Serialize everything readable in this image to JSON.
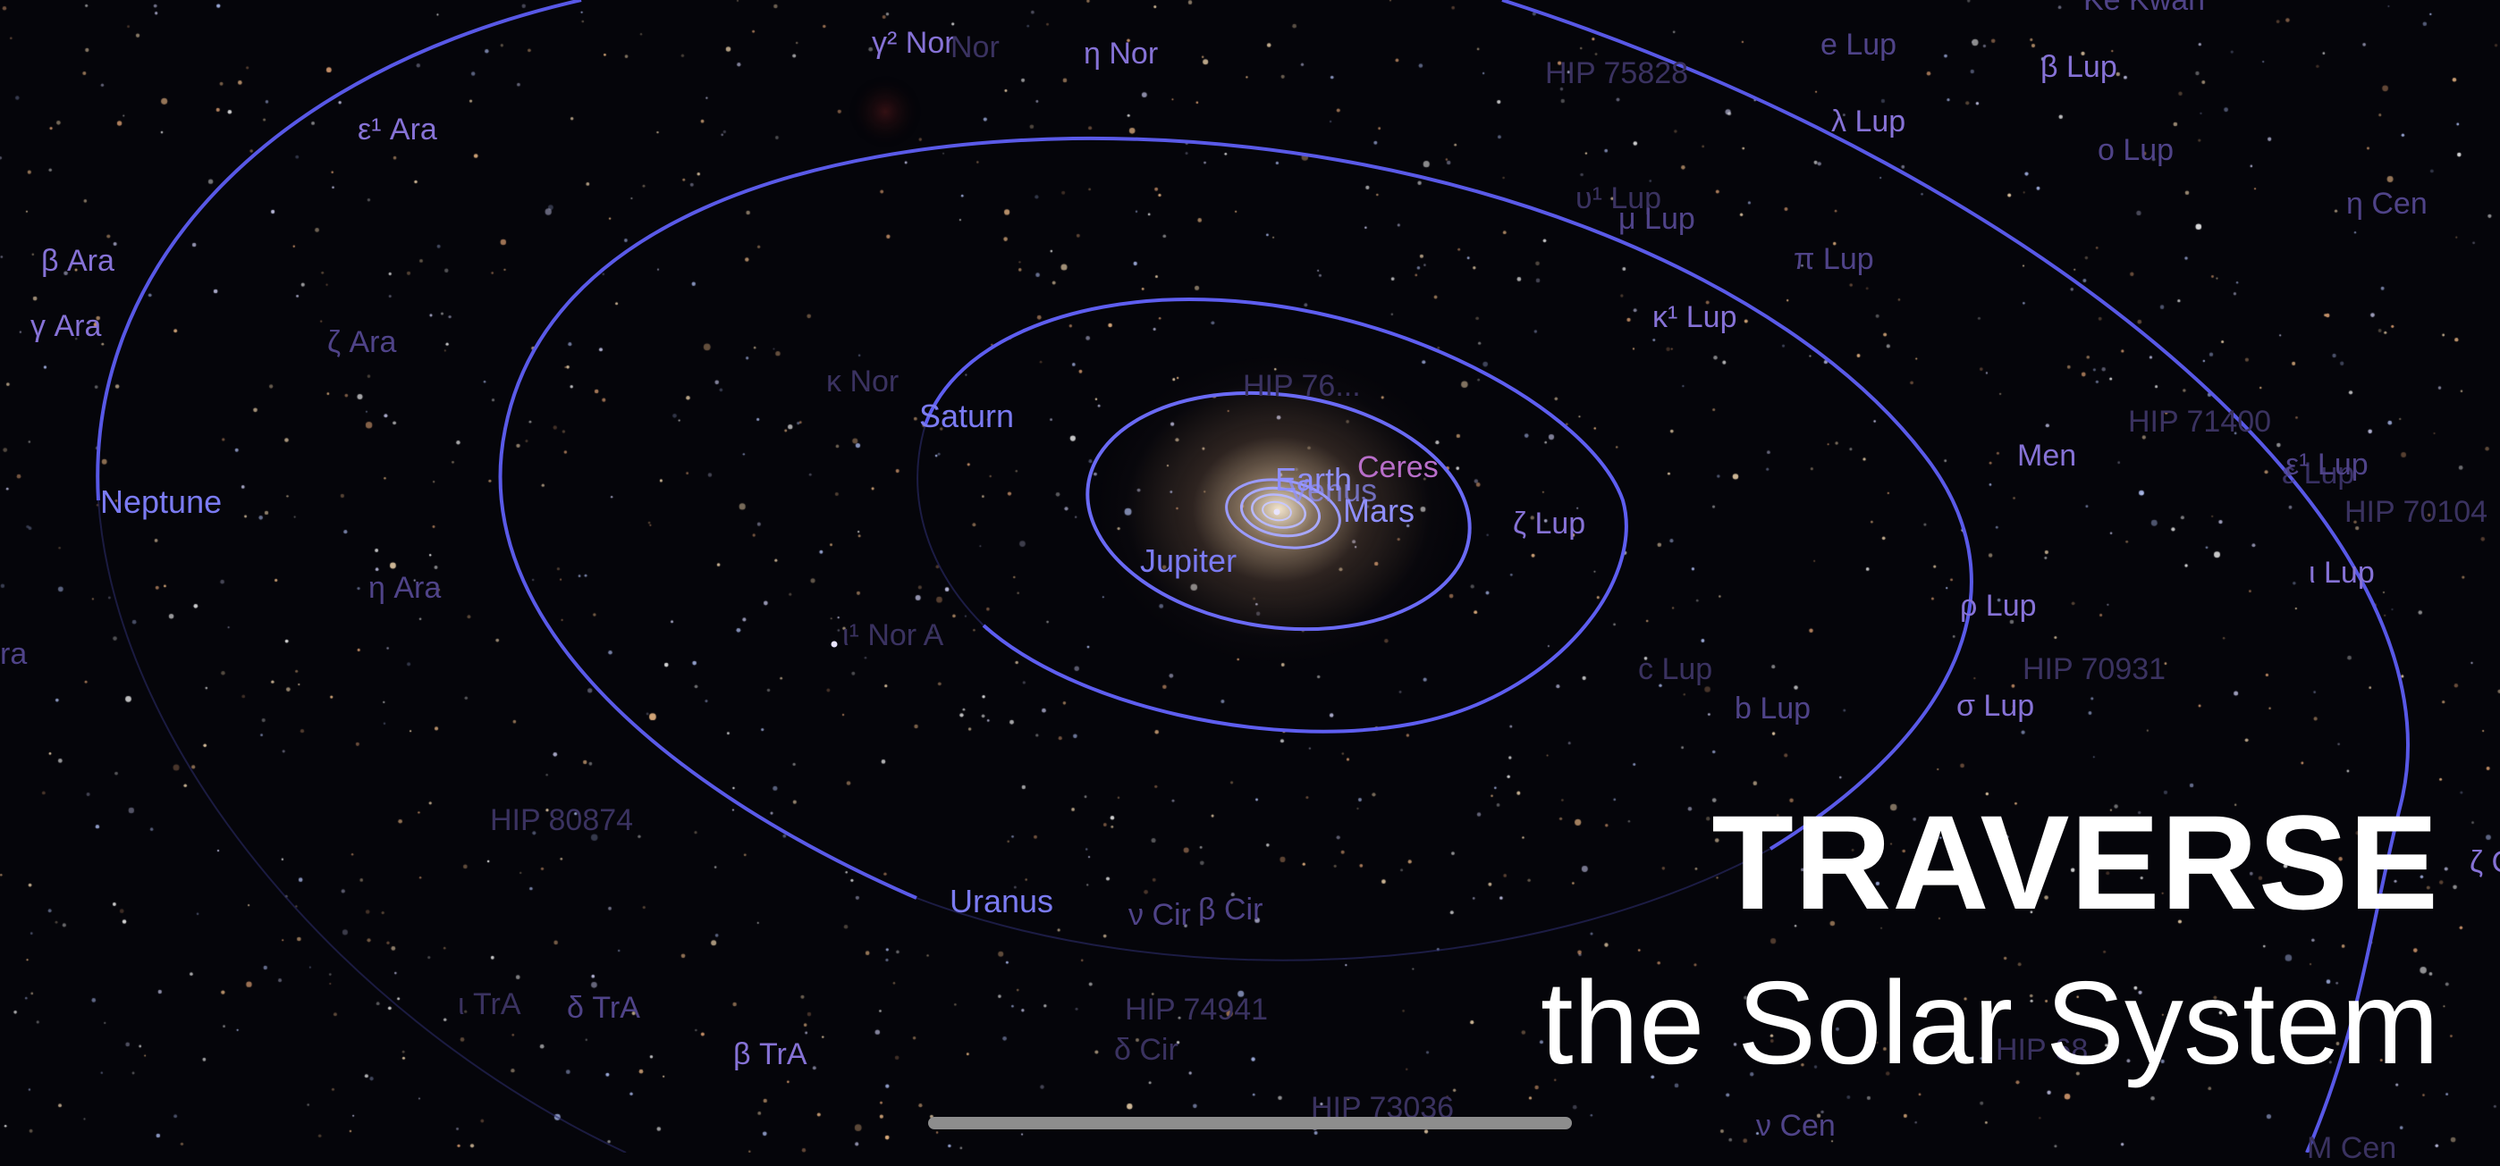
{
  "title": {
    "line1": "TRAVERSE",
    "line2": "the Solar System"
  },
  "planets": {
    "neptune": "Neptune",
    "saturn": "Saturn",
    "jupiter": "Jupiter",
    "uranus": "Uranus",
    "earth": "Earth",
    "venus": "Venus",
    "mars": "Mars",
    "ceres": "Ceres"
  },
  "stars": {
    "gamma2_nor": "γ² Nor",
    "nor_faint": "Nor",
    "eta_nor": "η Nor",
    "hip75828": "HIP 75828",
    "e_lup": "e Lup",
    "ke_kwan": "Ke Kwan",
    "beta_lup": "β Lup",
    "lambda_lup": "λ Lup",
    "o_lup": "o Lup",
    "eta_cen": "η Cen",
    "eps1_ara": "ε¹ Ara",
    "beta_ara": "β Ara",
    "gamma_ara": "γ Ara",
    "zeta_ara": "ζ Ara",
    "eta_ara": "η Ara",
    "ara_partial": "ra",
    "kappa_nor": "κ Nor",
    "upsilon1_lup": "υ¹ Lup",
    "mu_lup": "μ Lup",
    "pi_lup": "π Lup",
    "kappa1_lup": "κ¹ Lup",
    "hip_center": "HIP 76...",
    "men": "Men",
    "hip71400": "HIP 71400",
    "eps1_lup": "ε¹ Lup",
    "eps_lup": "ε Lup",
    "hip70104": "HIP 70104",
    "zeta_lup": "ζ Lup",
    "iota_lup": "ι Lup",
    "rho_lup": "ρ Lup",
    "nor_a": "ι¹ Nor A",
    "c_lup": "c Lup",
    "b_lup": "b Lup",
    "hip70931": "HIP 70931",
    "sigma_lup": "σ Lup",
    "hip80874": "HIP 80874",
    "zeta_partial": "ζ C",
    "nu_cir": "ν Cir",
    "beta_cir": "β Cir",
    "iota_tra": "ι TrA",
    "delta_tra": "δ TrA",
    "beta_tra": "β TrA",
    "hip74941": "HIP 74941",
    "delta_cir": "δ Cir",
    "hip68": "HIP 68...",
    "hip73036": "HIP 73036",
    "nu_cen": "ν Cen",
    "m_cen": "M Cen"
  },
  "colors": {
    "orbit": "#5c5cf0",
    "planet_label": "#7b7bf2",
    "star_label": "#8672d6",
    "ceres_label": "#b86ec9",
    "background": "#05050a"
  }
}
